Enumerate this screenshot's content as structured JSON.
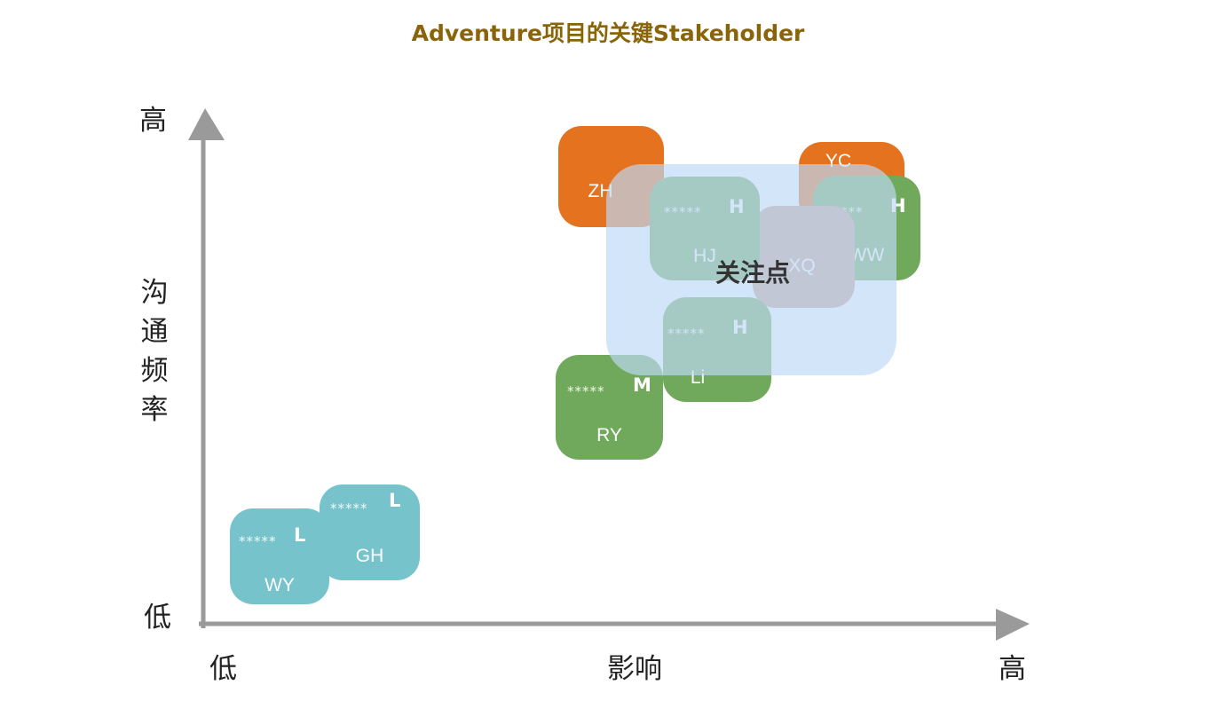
{
  "title": "Adventure项目的关键Stakeholder",
  "axes": {
    "y_high": "高",
    "y_low": "低",
    "y_title": "沟\n通\n频\n率",
    "x_low": "低",
    "x_title": "影响",
    "x_high": "高"
  },
  "focus_label": "关注点",
  "colors": {
    "title": "#8a6409",
    "teal": "#76c3cb",
    "green": "#71a95c",
    "orange": "#e4721e",
    "focus": "#bedaf6"
  },
  "stakeholders": {
    "wy": {
      "name": "WY",
      "stars": "*****",
      "level": "L"
    },
    "gh": {
      "name": "GH",
      "stars": "*****",
      "level": "L"
    },
    "ry": {
      "name": "RY",
      "stars": "*****",
      "level": "M"
    },
    "zh": {
      "name": "ZH"
    },
    "hj": {
      "name": "HJ",
      "stars": "*****",
      "level": "H"
    },
    "xq": {
      "name": "XQ"
    },
    "yc": {
      "name": "YC"
    },
    "ww": {
      "name": "WW",
      "stars": "*****",
      "level": "H"
    },
    "li": {
      "name": "Li",
      "stars": "*****",
      "level": "H"
    }
  }
}
